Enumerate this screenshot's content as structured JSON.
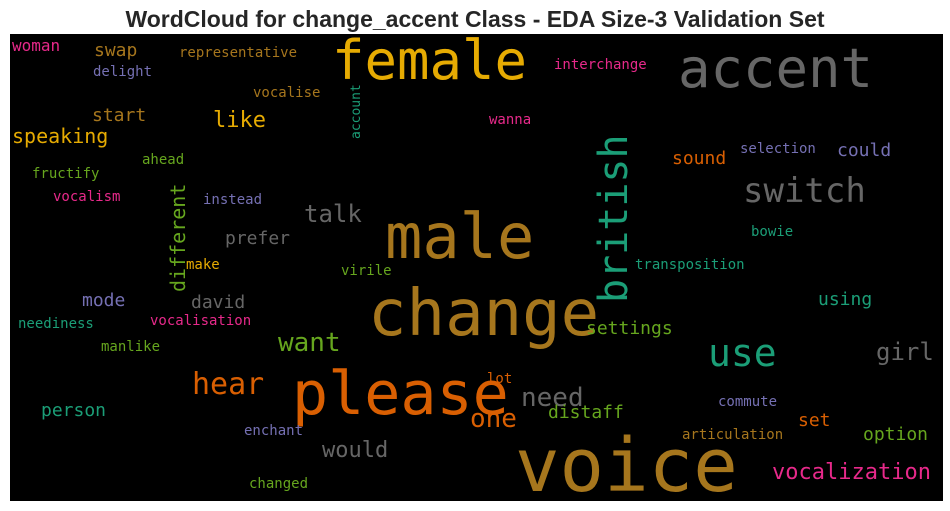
{
  "title": "WordCloud for change_accent Class - EDA Size-3 Validation Set",
  "colors": {
    "background": "#000000",
    "title": "#262626",
    "palette": [
      "#1b9e77",
      "#d95f02",
      "#7570b3",
      "#e7298a",
      "#66a61e",
      "#e6ab02",
      "#a6761d",
      "#666666"
    ]
  },
  "chart_data": {
    "type": "wordcloud",
    "title": "WordCloud for change_accent Class - EDA Size-3 Validation Set",
    "words": [
      {
        "text": "voice",
        "color": "#a6761d"
      },
      {
        "text": "change",
        "color": "#a6761d"
      },
      {
        "text": "male",
        "color": "#a6761d"
      },
      {
        "text": "please",
        "color": "#d95f02"
      },
      {
        "text": "female",
        "color": "#e6ab02"
      },
      {
        "text": "accent",
        "color": "#666666"
      },
      {
        "text": "british",
        "color": "#1b9e77"
      },
      {
        "text": "use",
        "color": "#1b9e77"
      },
      {
        "text": "switch",
        "color": "#666666"
      },
      {
        "text": "hear",
        "color": "#d95f02"
      },
      {
        "text": "want",
        "color": "#66a61e"
      },
      {
        "text": "need",
        "color": "#666666"
      },
      {
        "text": "one",
        "color": "#d95f02"
      },
      {
        "text": "talk",
        "color": "#666666"
      },
      {
        "text": "girl",
        "color": "#666666"
      },
      {
        "text": "would",
        "color": "#666666"
      },
      {
        "text": "vocalization",
        "color": "#e7298a"
      },
      {
        "text": "like",
        "color": "#e6ab02"
      },
      {
        "text": "different",
        "color": "#66a61e"
      },
      {
        "text": "speaking",
        "color": "#e6ab02"
      },
      {
        "text": "prefer",
        "color": "#666666"
      },
      {
        "text": "settings",
        "color": "#66a61e"
      },
      {
        "text": "distaff",
        "color": "#66a61e"
      },
      {
        "text": "sound",
        "color": "#d95f02"
      },
      {
        "text": "could",
        "color": "#7570b3"
      },
      {
        "text": "set",
        "color": "#d95f02"
      },
      {
        "text": "option",
        "color": "#66a61e"
      },
      {
        "text": "using",
        "color": "#1b9e77"
      },
      {
        "text": "swap",
        "color": "#a6761d"
      },
      {
        "text": "start",
        "color": "#a6761d"
      },
      {
        "text": "mode",
        "color": "#7570b3"
      },
      {
        "text": "david",
        "color": "#666666"
      },
      {
        "text": "person",
        "color": "#1b9e77"
      },
      {
        "text": "woman",
        "color": "#e7298a"
      },
      {
        "text": "representative",
        "color": "#a6761d"
      },
      {
        "text": "delight",
        "color": "#7570b3"
      },
      {
        "text": "vocalise",
        "color": "#a6761d"
      },
      {
        "text": "account",
        "color": "#1b9e77"
      },
      {
        "text": "interchange",
        "color": "#e7298a"
      },
      {
        "text": "wanna",
        "color": "#e7298a"
      },
      {
        "text": "ahead",
        "color": "#66a61e"
      },
      {
        "text": "fructify",
        "color": "#66a61e"
      },
      {
        "text": "vocalism",
        "color": "#e7298a"
      },
      {
        "text": "instead",
        "color": "#7570b3"
      },
      {
        "text": "selection",
        "color": "#7570b3"
      },
      {
        "text": "bowie",
        "color": "#1b9e77"
      },
      {
        "text": "transposition",
        "color": "#1b9e77"
      },
      {
        "text": "make",
        "color": "#e6ab02"
      },
      {
        "text": "virile",
        "color": "#66a61e"
      },
      {
        "text": "neediness",
        "color": "#1b9e77"
      },
      {
        "text": "vocalisation",
        "color": "#e7298a"
      },
      {
        "text": "manlike",
        "color": "#66a61e"
      },
      {
        "text": "lot",
        "color": "#d95f02"
      },
      {
        "text": "commute",
        "color": "#7570b3"
      },
      {
        "text": "articulation",
        "color": "#a6761d"
      },
      {
        "text": "enchant",
        "color": "#7570b3"
      },
      {
        "text": "changed",
        "color": "#66a61e"
      }
    ]
  }
}
